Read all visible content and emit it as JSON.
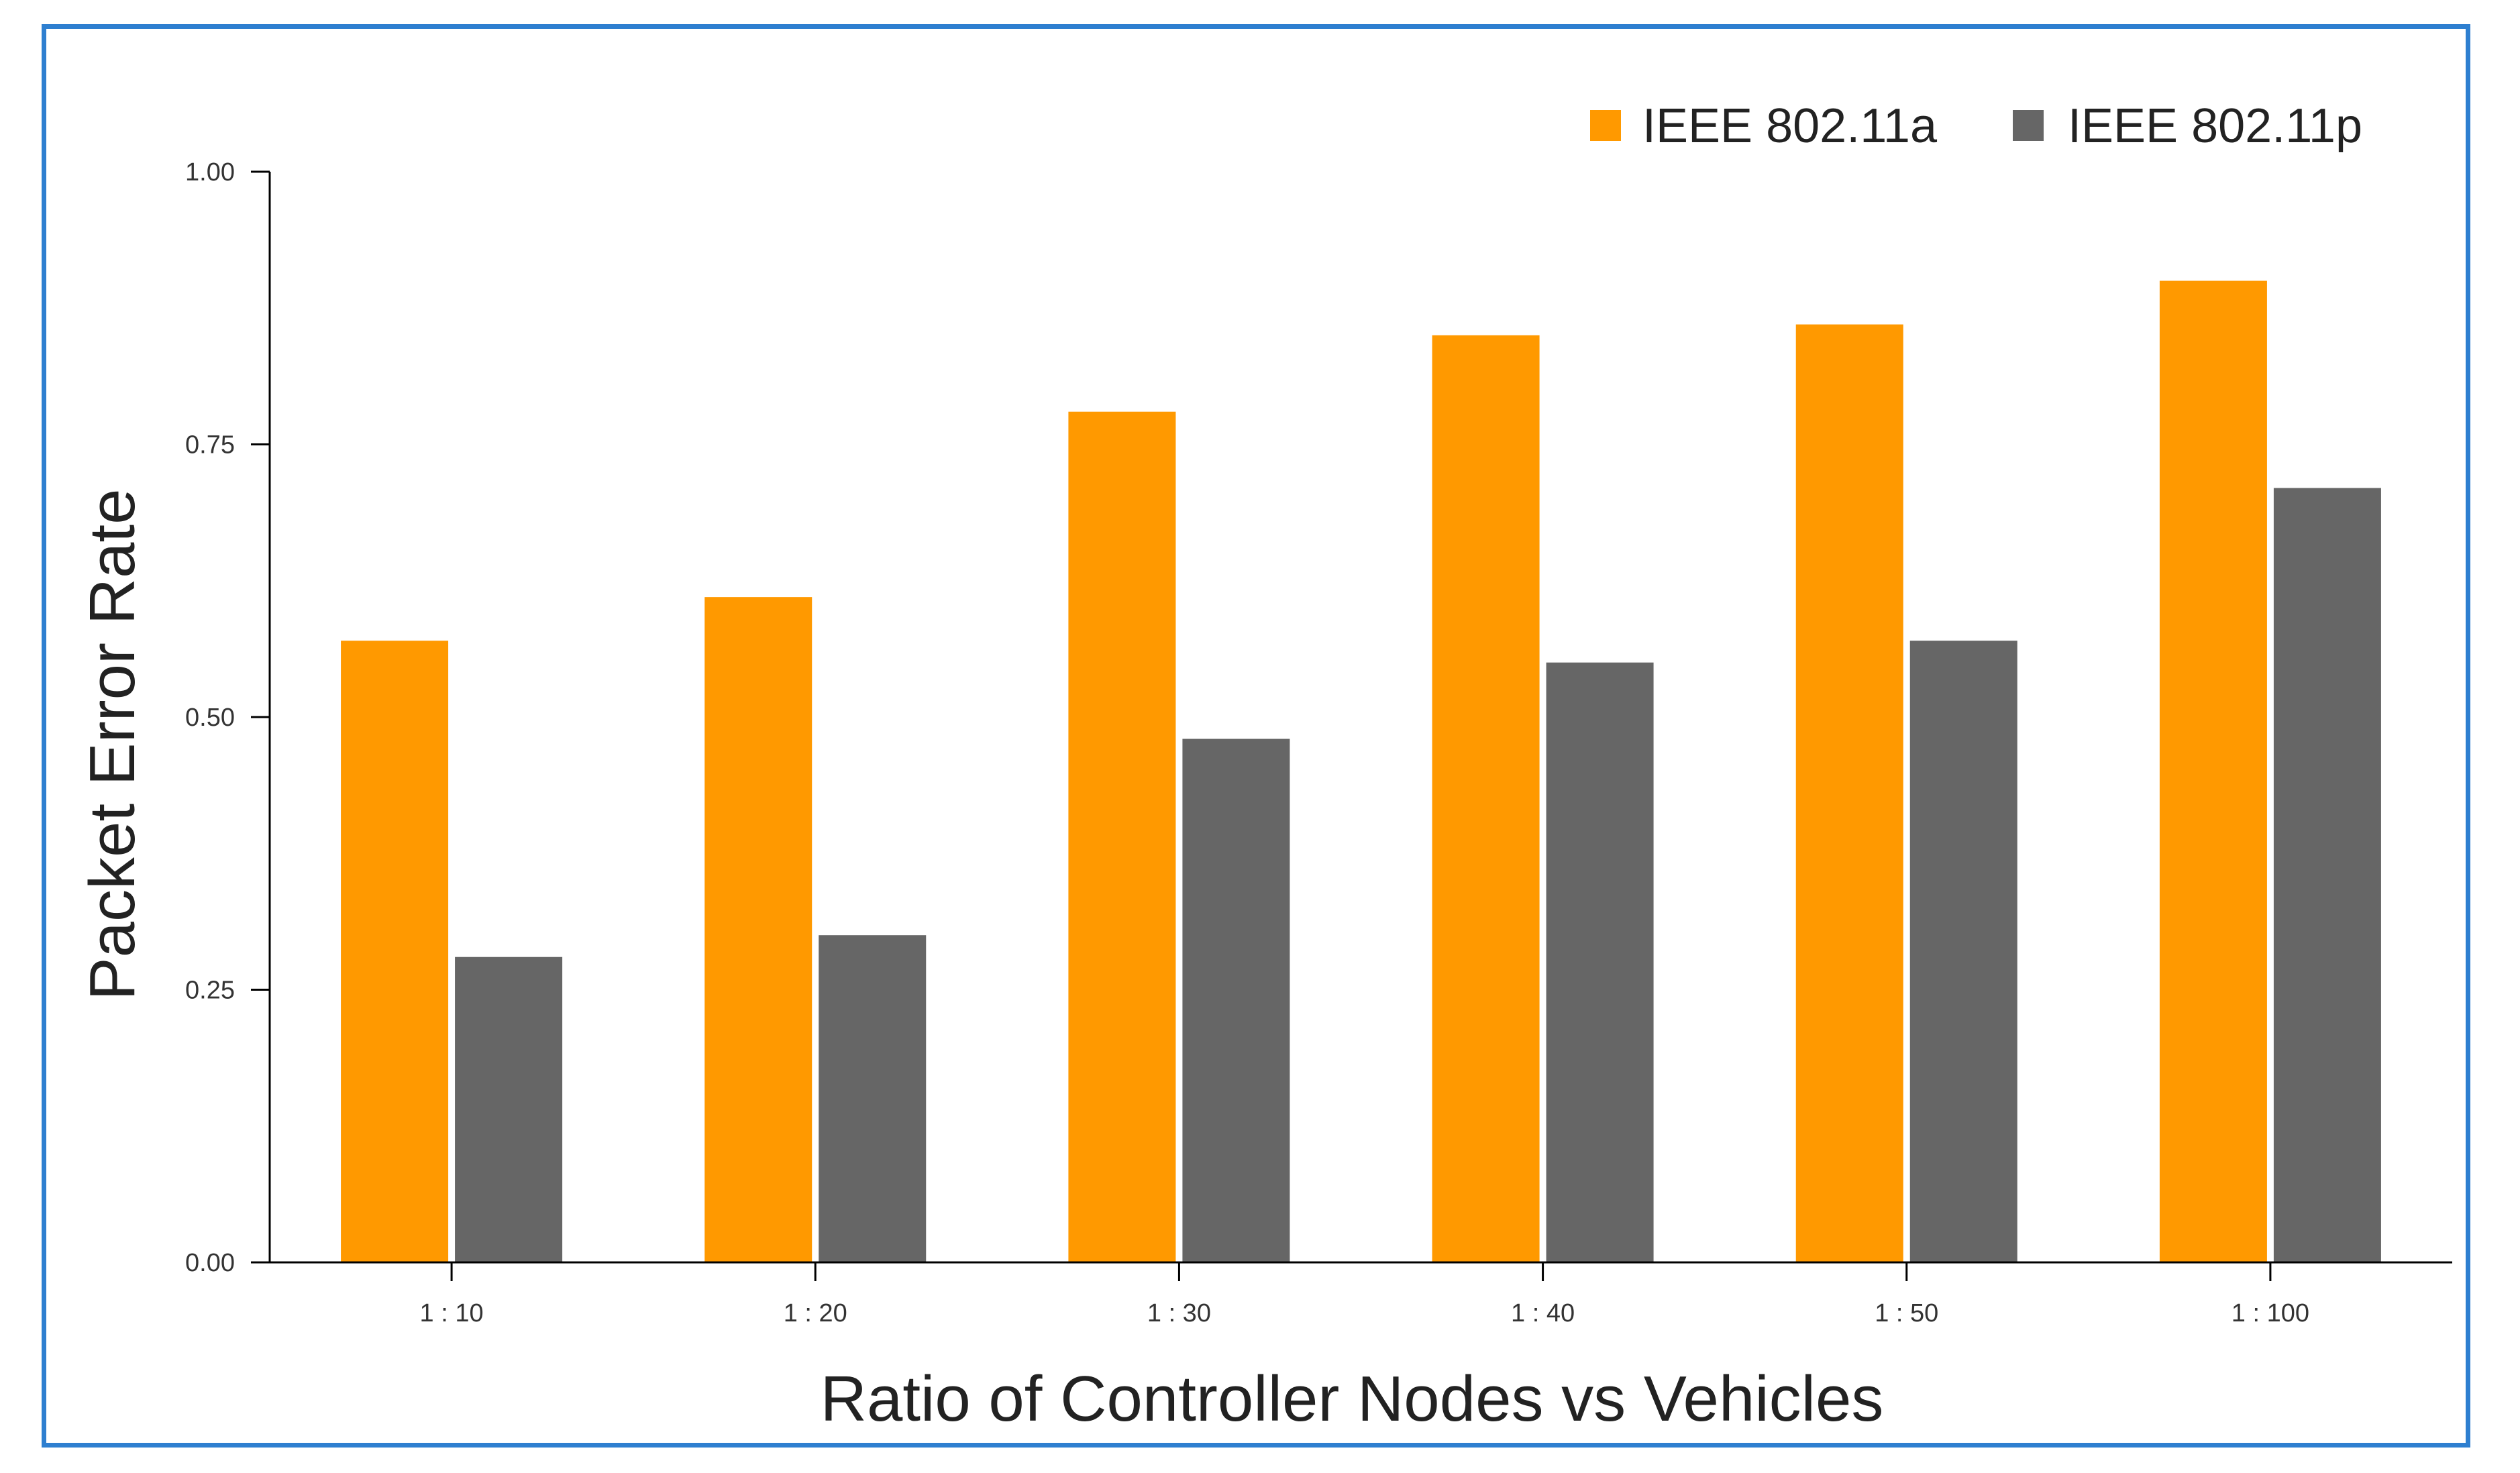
{
  "chart_data": {
    "type": "bar",
    "title": "",
    "xlabel": "Ratio of Controller Nodes vs Vehicles",
    "ylabel": "Packet Error Rate",
    "categories": [
      "1 : 10",
      "1 : 20",
      "1 : 30",
      "1 : 40",
      "1 : 50",
      "1 : 100"
    ],
    "ylim": [
      0,
      1
    ],
    "yticks": [
      "0.00",
      "0.25",
      "0.50",
      "0.75",
      "1.00"
    ],
    "grid": false,
    "legend_position": "top-right",
    "series": [
      {
        "name": "IEEE 802.11a",
        "color": "#ff9900",
        "values": [
          0.57,
          0.61,
          0.78,
          0.85,
          0.86,
          0.9
        ]
      },
      {
        "name": "IEEE 802.11p",
        "color": "#666666",
        "values": [
          0.28,
          0.3,
          0.48,
          0.55,
          0.57,
          0.71
        ]
      }
    ]
  },
  "colors": {
    "frame": "#2e7fd0",
    "axis": "#000000"
  }
}
